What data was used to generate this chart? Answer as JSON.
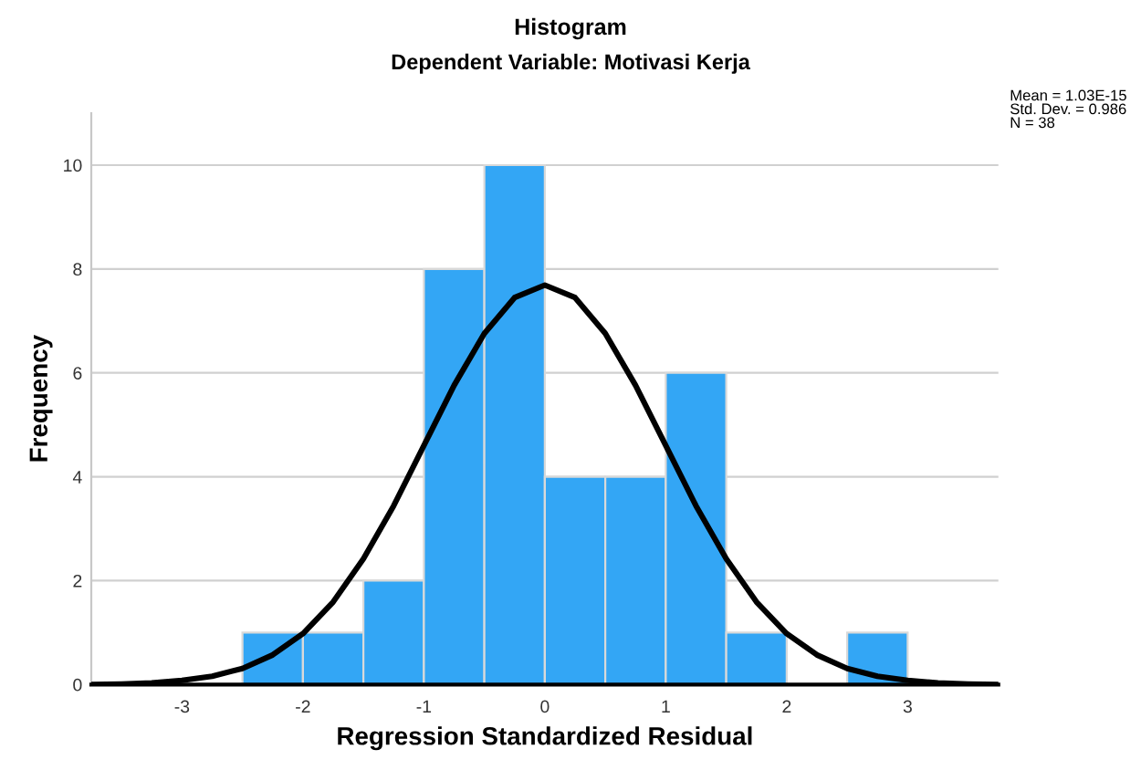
{
  "chart_data": {
    "type": "histogram",
    "title": "Histogram",
    "subtitle": "Dependent Variable: Motivasi Kerja",
    "xlabel": "Regression Standardized Residual",
    "ylabel": "Frequency",
    "bins": [
      -2.5,
      -2.0,
      -1.5,
      -1.0,
      -0.5,
      0.0,
      0.5,
      1.0,
      1.5,
      2.0,
      2.5,
      3.0
    ],
    "values": [
      1,
      1,
      2,
      8,
      10,
      4,
      4,
      6,
      1,
      0,
      1
    ],
    "color": "#33a6f5",
    "series": [
      {
        "type": "line",
        "color": "#000000",
        "x": [
          -3.75,
          -3.5,
          -3.25,
          -3.0,
          -2.75,
          -2.5,
          -2.25,
          -2.0,
          -1.75,
          -1.5,
          -1.25,
          -1.0,
          -0.75,
          -0.5,
          -0.25,
          0.0,
          0.25,
          0.5,
          0.75,
          1.0,
          1.25,
          1.5,
          1.75,
          2.0,
          2.25,
          2.5,
          2.75,
          3.0,
          3.25,
          3.5,
          3.75
        ],
        "values": [
          0.0,
          0.01,
          0.03,
          0.08,
          0.16,
          0.31,
          0.57,
          0.98,
          1.59,
          2.42,
          3.44,
          4.6,
          5.76,
          6.76,
          7.45,
          7.69,
          7.45,
          6.76,
          5.76,
          4.6,
          3.44,
          2.42,
          1.59,
          0.98,
          0.57,
          0.31,
          0.16,
          0.08,
          0.03,
          0.01,
          0.0
        ]
      }
    ],
    "xlim": [
      -3.75,
      3.75
    ],
    "ylim": [
      0,
      11
    ],
    "xticks": [
      -3,
      -2,
      -1,
      0,
      1,
      2,
      3
    ],
    "yticks": [
      0,
      2,
      4,
      6,
      8,
      10
    ],
    "grid": "y",
    "annotations": [
      "Mean = 1.03E-15",
      "Std. Dev. = 0.986",
      "N = 38"
    ]
  }
}
